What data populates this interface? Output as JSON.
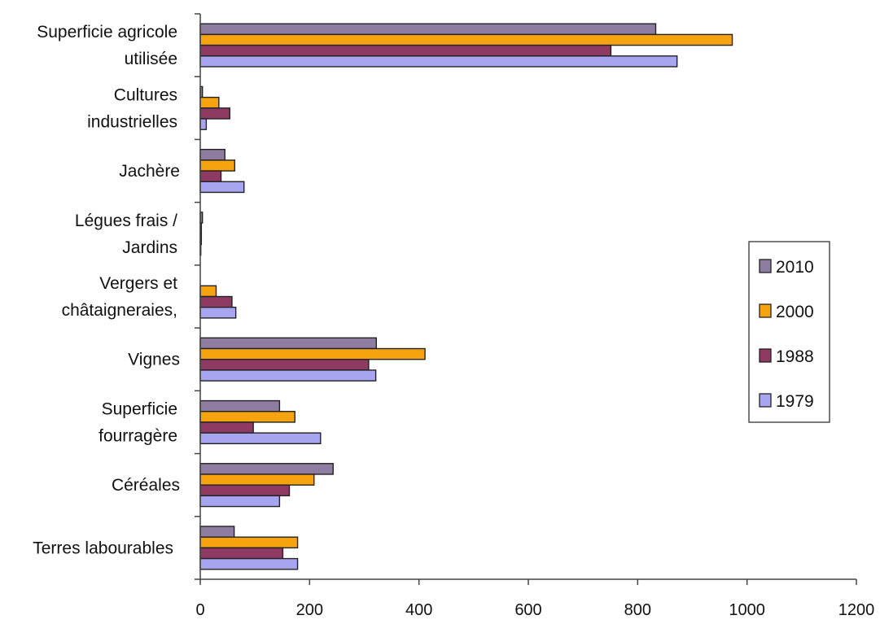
{
  "chart_data": {
    "type": "bar",
    "orientation": "horizontal",
    "categories": [
      [
        "Superficie agricole",
        "utilisée"
      ],
      [
        "Cultures",
        "industrielles"
      ],
      [
        "Jachère"
      ],
      [
        "Légues frais /",
        "Jardins"
      ],
      [
        "Vergers et",
        "châtaigneraies,"
      ],
      [
        "Vignes"
      ],
      [
        "Superficie",
        "fourragère"
      ],
      [
        "Céréales"
      ],
      [
        "Terres labourables"
      ]
    ],
    "series": [
      {
        "name": "2010",
        "color": "#8E7CA1",
        "values": [
          833,
          4,
          45,
          4,
          0,
          322,
          145,
          243,
          62
        ]
      },
      {
        "name": "2000",
        "color": "#F5A40F",
        "values": [
          973,
          34,
          63,
          2,
          29,
          411,
          173,
          208,
          178
        ]
      },
      {
        "name": "1988",
        "color": "#8E3A63",
        "values": [
          751,
          54,
          38,
          2,
          58,
          308,
          97,
          163,
          151
        ]
      },
      {
        "name": "1979",
        "color": "#A8A5F0",
        "values": [
          872,
          11,
          80,
          1,
          65,
          321,
          220,
          145,
          178
        ]
      }
    ],
    "xlim": [
      0,
      1200
    ],
    "xticks": [
      "0",
      "200",
      "400",
      "600",
      "800",
      "1000",
      "1200"
    ],
    "grid": false,
    "legend_position": "right"
  }
}
